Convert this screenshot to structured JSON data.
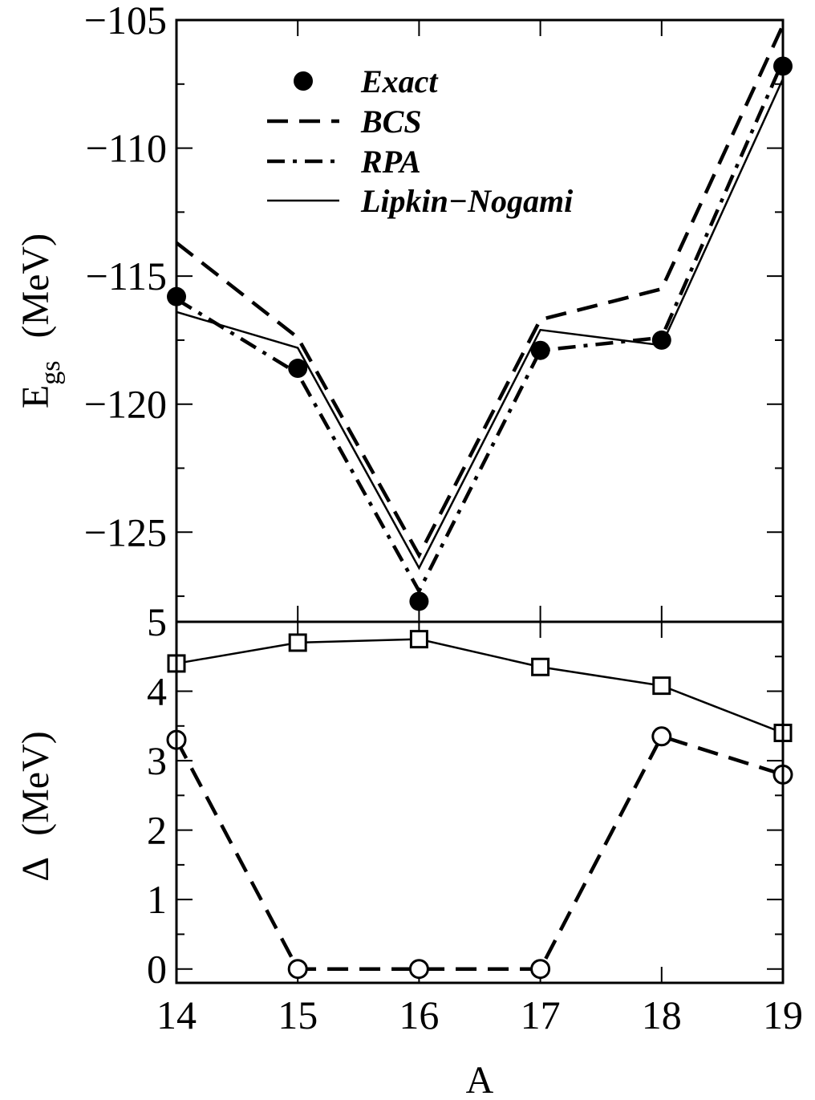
{
  "chart_data": [
    {
      "type": "line",
      "panel": "top",
      "ylabel_main": "E",
      "ylabel_sub": "gs",
      "ylabel_unit": "(MeV)",
      "ylim": [
        -128.5,
        -105
      ],
      "yticks": [
        -105,
        -110,
        -115,
        -120,
        -125
      ],
      "ytick_labels": [
        "−105",
        "−110",
        "−115",
        "−120",
        "−125"
      ],
      "x": [
        14,
        15,
        16,
        17,
        18,
        19
      ],
      "series": [
        {
          "name": "Exact",
          "style": "marker-filled-circle",
          "values": [
            -115.8,
            -118.6,
            -127.7,
            -117.9,
            -117.5,
            -106.8
          ]
        },
        {
          "name": "BCS",
          "style": "dashed",
          "values": [
            -113.7,
            -117.4,
            -125.9,
            -116.7,
            -115.5,
            -105.2
          ]
        },
        {
          "name": "RPA",
          "style": "dash-dot",
          "values": [
            -115.9,
            -118.8,
            -127.3,
            -117.9,
            -117.4,
            -106.6
          ]
        },
        {
          "name": "Lipkin−Nogami",
          "style": "solid",
          "values": [
            -116.4,
            -117.8,
            -126.4,
            -117.1,
            -117.7,
            -107.3
          ]
        }
      ],
      "legend_position": "top-left"
    },
    {
      "type": "line",
      "panel": "bottom",
      "ylabel_main": "Δ",
      "ylabel_unit": "(MeV)",
      "xlabel": "A",
      "xlim": [
        14,
        19
      ],
      "ylim": [
        -0.2,
        5
      ],
      "yticks": [
        0,
        1,
        2,
        3,
        4,
        5
      ],
      "ytick_labels": [
        "0",
        "1",
        "2",
        "3",
        "4",
        "5"
      ],
      "x": [
        14,
        15,
        16,
        17,
        18,
        19
      ],
      "xtick_labels": [
        "14",
        "15",
        "16",
        "17",
        "18",
        "19"
      ],
      "series": [
        {
          "style": "solid-square-markers",
          "values": [
            4.4,
            4.7,
            4.75,
            4.35,
            4.08,
            3.4
          ]
        },
        {
          "style": "dashed-circle-markers",
          "values": [
            3.3,
            0,
            0,
            0,
            3.35,
            2.8
          ]
        }
      ]
    }
  ]
}
